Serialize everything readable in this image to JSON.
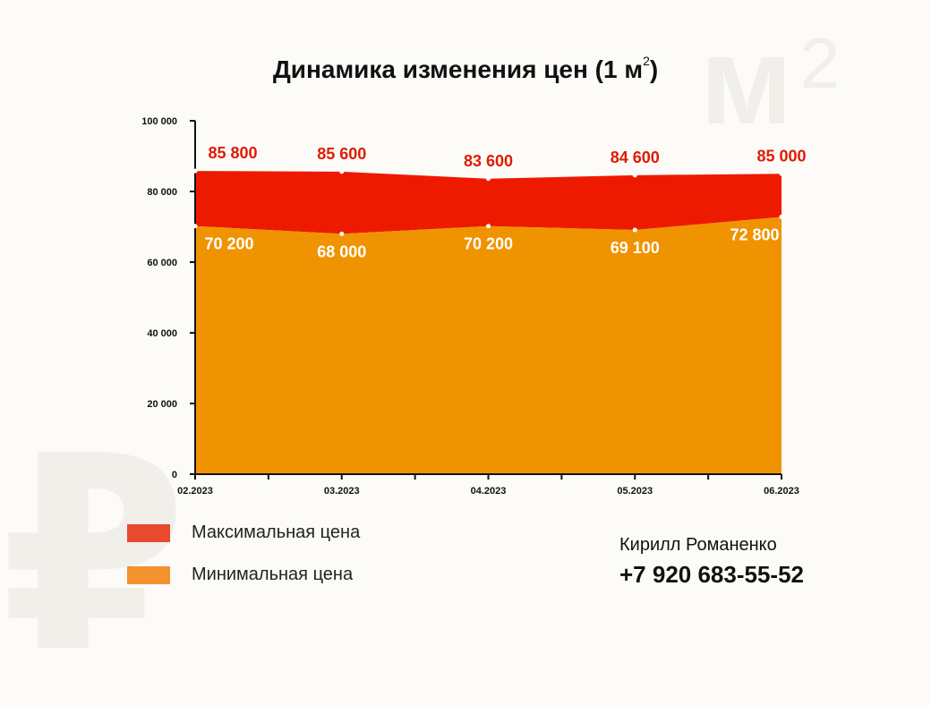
{
  "header": {
    "title_prefix": "Динамика изменения цен (1 м",
    "title_sup": "2",
    "title_suffix": ")"
  },
  "watermarks": {
    "m2_main": "м",
    "m2_sup": "2",
    "ruble": "₽"
  },
  "chart_data": {
    "type": "area",
    "categories": [
      "02.2023",
      "03.2023",
      "04.2023",
      "05.2023",
      "06.2023"
    ],
    "series": [
      {
        "name": "Максимальная цена",
        "values": [
          85800,
          85600,
          83600,
          84600,
          85000
        ],
        "labels": [
          "85 800",
          "85 600",
          "83 600",
          "84 600",
          "85 000"
        ],
        "color": "#ee1a00"
      },
      {
        "name": "Минимальная цена",
        "values": [
          70200,
          68000,
          70200,
          69100,
          72800
        ],
        "labels": [
          "70 200",
          "68 000",
          "70 200",
          "69 100",
          "72 800"
        ],
        "color": "#f09300"
      }
    ],
    "ylim": [
      0,
      100000
    ],
    "yticks": [
      0,
      20000,
      40000,
      60000,
      80000,
      100000
    ],
    "ytick_labels": [
      "0",
      "20 000",
      "40 000",
      "60 000",
      "80 000",
      "100 000"
    ],
    "xlabel": "",
    "ylabel": "",
    "grid": false,
    "legend": "bottom-left"
  },
  "legend": {
    "items": [
      {
        "label": "Максимальная цена",
        "color": "#e84a2e"
      },
      {
        "label": "Минимальная цена",
        "color": "#f3922e"
      }
    ]
  },
  "contact": {
    "name": "Кирилл Романенко",
    "phone": "+7 920 683-55-52"
  }
}
